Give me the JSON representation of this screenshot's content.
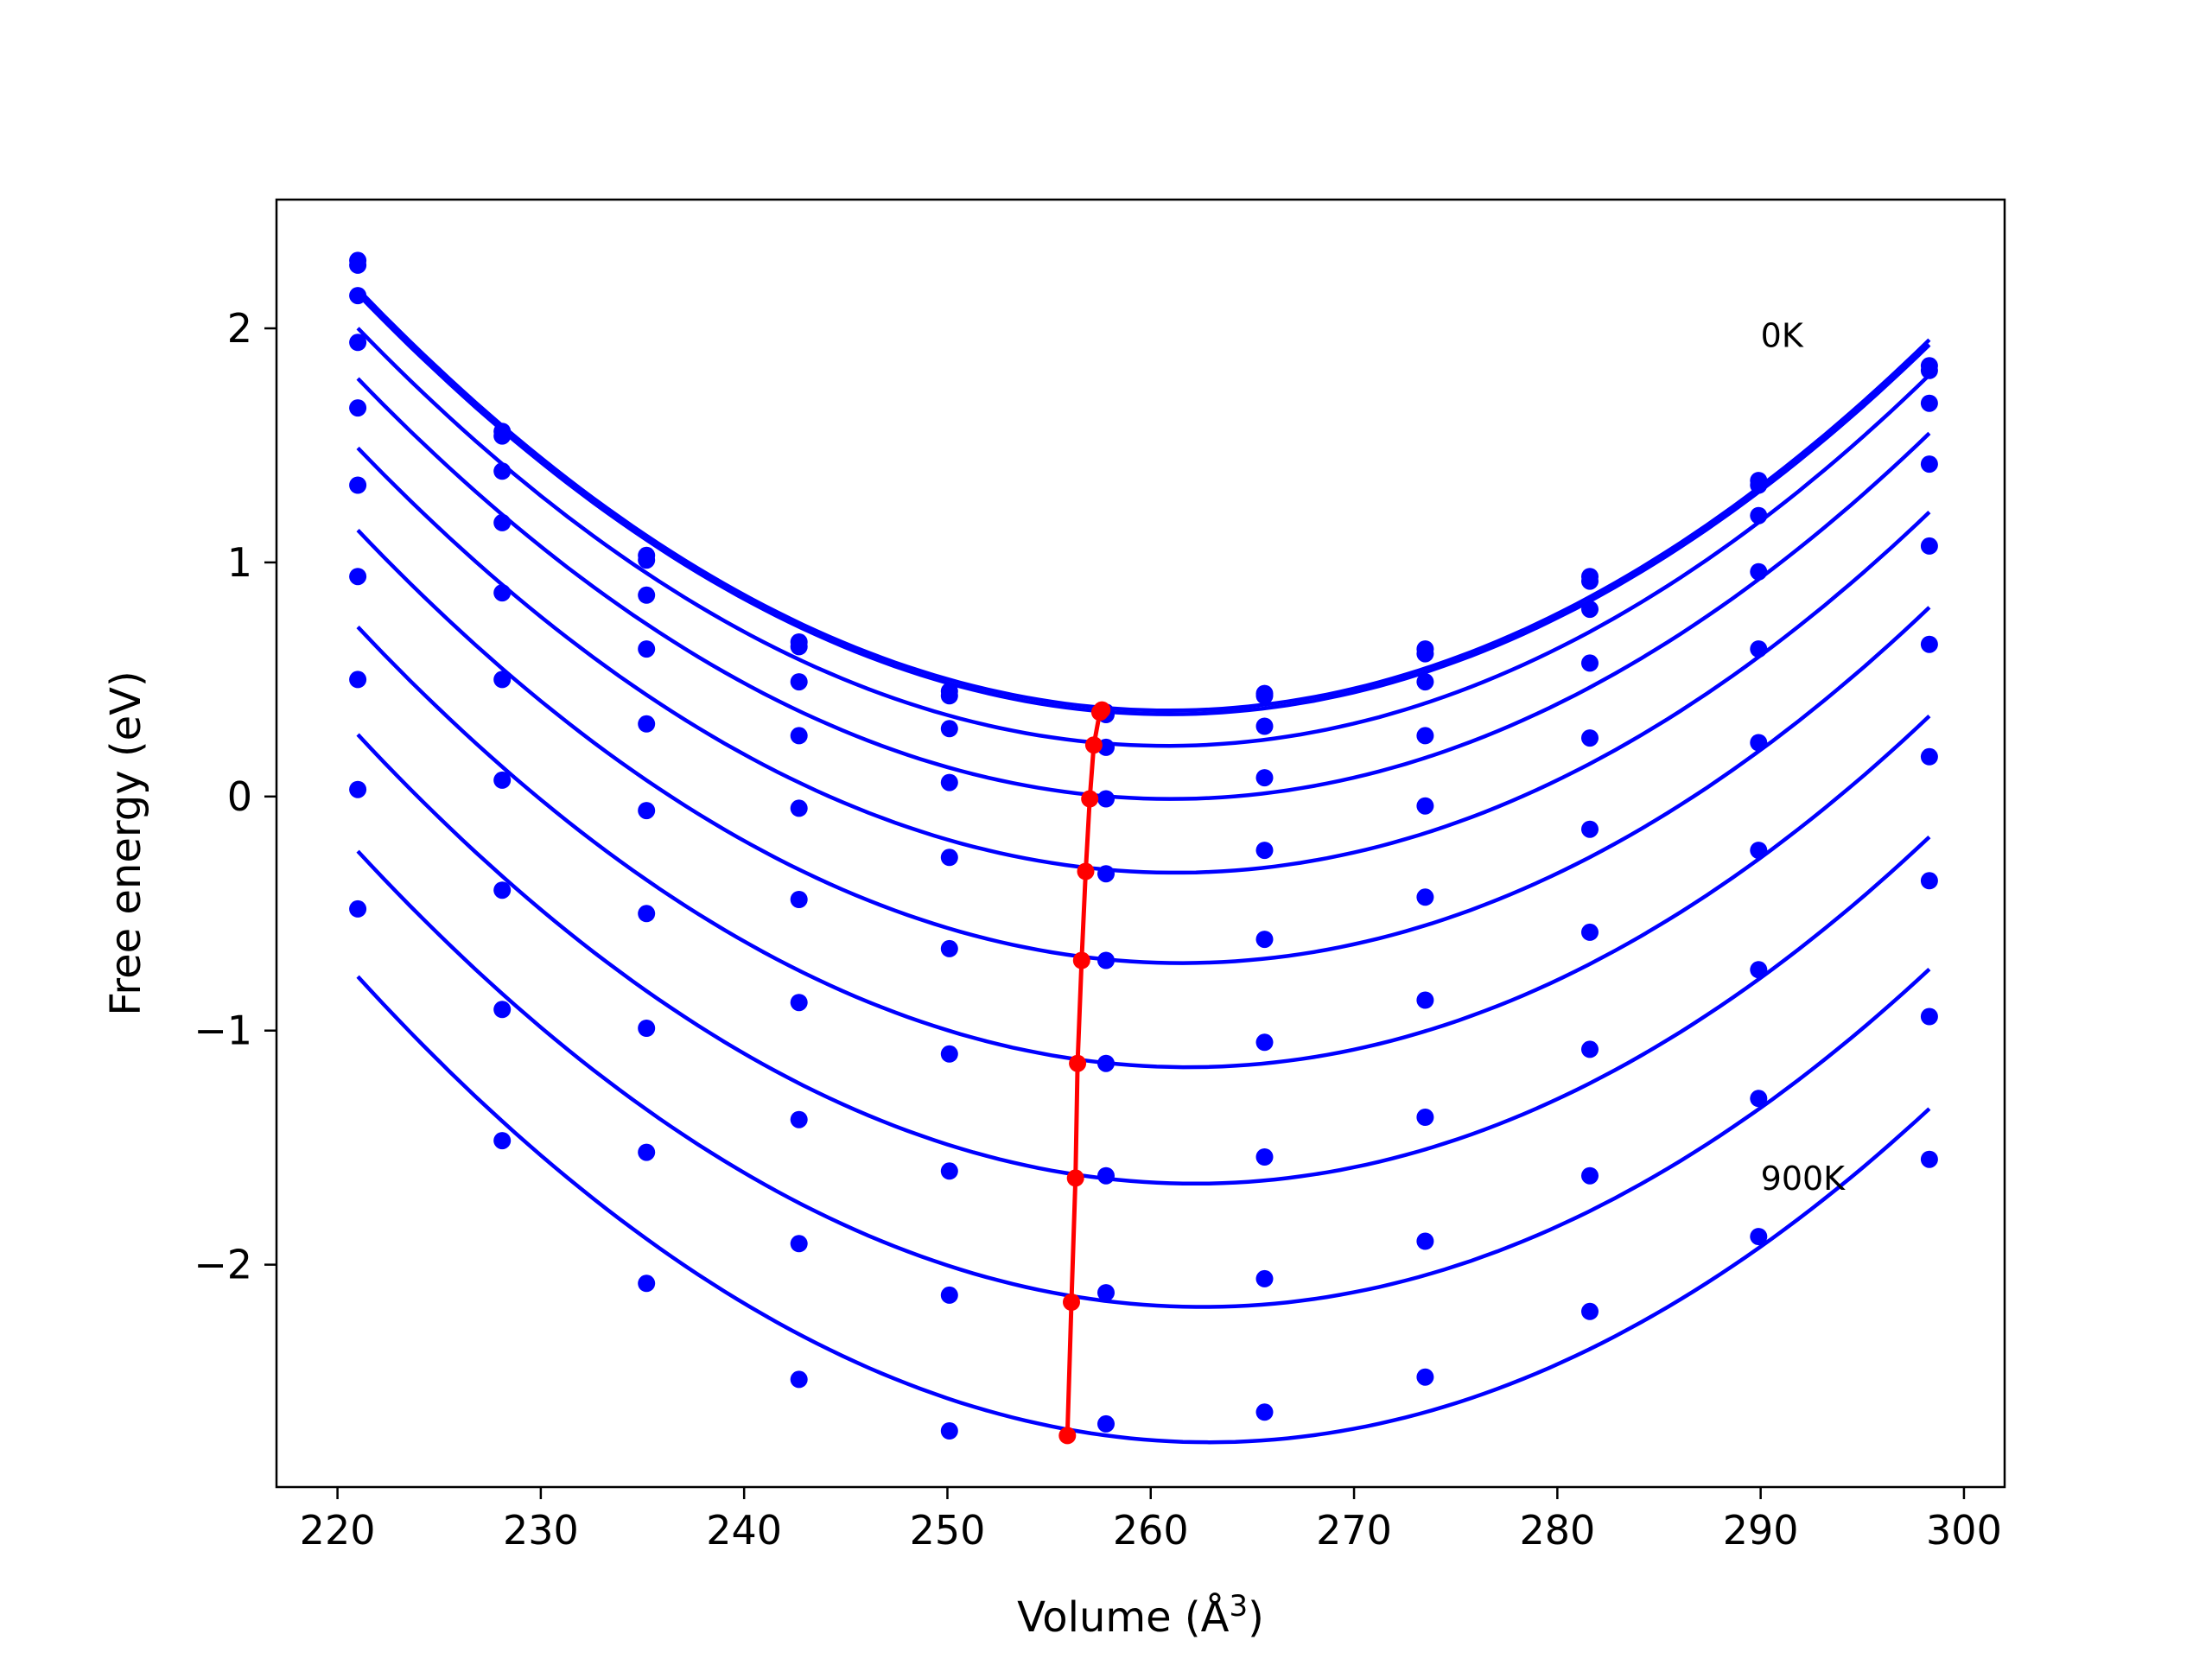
{
  "chart_data": {
    "type": "line",
    "title": "",
    "xlabel": "Volume (Å",
    "xlabel_sup": "3",
    "xlabel_close": ")",
    "ylabel": "Free energy (eV)",
    "xlim": [
      217,
      302
    ],
    "ylim": [
      -2.95,
      2.55
    ],
    "xticks": [
      220,
      230,
      240,
      250,
      260,
      270,
      280,
      290,
      300
    ],
    "yticks": [
      -2,
      -1,
      0,
      1,
      2
    ],
    "ytick_labels": [
      "−2",
      "−1",
      "0",
      "1",
      "2"
    ],
    "grid": false,
    "legend": "none",
    "annotations": [
      {
        "text": "0K",
        "x": 290,
        "y": 1.92
      },
      {
        "text": "900K",
        "x": 290,
        "y": -1.68
      }
    ],
    "colors": {
      "curves": "#0000ff",
      "equilibrium": "#ff0000",
      "axes": "#000000"
    },
    "volumes": [
      221.0,
      228.1,
      235.2,
      242.7,
      250.1,
      257.8,
      265.6,
      273.5,
      281.6,
      289.9,
      298.3
    ],
    "series": [
      {
        "y": [
          2.29,
          1.56,
          1.03,
          0.66,
          0.45,
          0.36,
          0.44,
          0.63,
          0.94,
          1.35,
          1.84
        ]
      },
      {
        "y": [
          2.27,
          1.54,
          1.01,
          0.64,
          0.43,
          0.35,
          0.43,
          0.61,
          0.92,
          1.33,
          1.82
        ]
      },
      {
        "y": [
          2.14,
          1.39,
          0.86,
          0.49,
          0.29,
          0.21,
          0.3,
          0.49,
          0.8,
          1.2,
          1.68
        ]
      },
      {
        "y": [
          1.94,
          1.17,
          0.63,
          0.26,
          0.06,
          -0.01,
          0.08,
          0.26,
          0.57,
          0.96,
          1.42
        ]
      },
      {
        "y": [
          1.66,
          0.87,
          0.31,
          -0.05,
          -0.26,
          -0.33,
          -0.23,
          -0.04,
          0.25,
          0.63,
          1.07
        ]
      },
      {
        "y": [
          1.33,
          0.5,
          -0.06,
          -0.44,
          -0.65,
          -0.7,
          -0.61,
          -0.43,
          -0.14,
          0.23,
          0.65
        ]
      },
      {
        "y": [
          0.94,
          0.07,
          -0.5,
          -0.88,
          -1.1,
          -1.14,
          -1.05,
          -0.87,
          -0.58,
          -0.23,
          0.17
        ]
      },
      {
        "y": [
          0.5,
          -0.4,
          -0.99,
          -1.38,
          -1.6,
          -1.62,
          -1.54,
          -1.37,
          -1.08,
          -0.74,
          -0.36
        ]
      },
      {
        "y": [
          0.03,
          -0.91,
          -1.52,
          -1.91,
          -2.13,
          -2.12,
          -2.06,
          -1.9,
          -1.62,
          -1.29,
          -0.94
        ]
      },
      {
        "y": [
          -0.48,
          -1.47,
          -2.08,
          -2.49,
          -2.71,
          -2.68,
          -2.63,
          -2.48,
          -2.2,
          -1.88,
          -1.55
        ]
      }
    ],
    "equilibrium": {
      "x": [
        257.6,
        257.5,
        257.2,
        257.0,
        256.8,
        256.6,
        256.4,
        256.3,
        256.1,
        255.9
      ],
      "y": [
        0.37,
        0.36,
        0.22,
        -0.01,
        -0.32,
        -0.7,
        -1.14,
        -1.63,
        -2.16,
        -2.73
      ]
    }
  }
}
